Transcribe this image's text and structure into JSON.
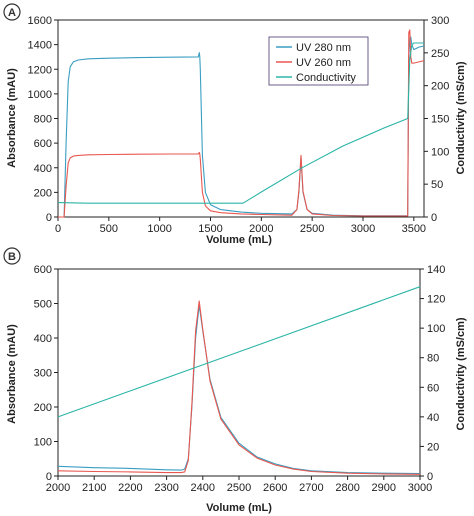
{
  "colors": {
    "uv280": "#3a9ec2",
    "uv260": "#e8574f",
    "conductivity": "#2bb5a6",
    "panel_badge_bg": "#ffffff",
    "frame": "#222222"
  },
  "panels": [
    {
      "id": "A",
      "badge": "A",
      "xlabel": "Volume (mL)",
      "ylabel_left": "Absorbance (mAU)",
      "ylabel_right": "Conductivity (mS/cm)",
      "legend": [
        "UV 280 nm",
        "UV 260 nm",
        "Conductivity"
      ]
    },
    {
      "id": "B",
      "badge": "B",
      "xlabel": "Volume (mL)",
      "ylabel_left": "Absorbance (mAU)",
      "ylabel_right": "Conductivity (mS/cm)"
    }
  ],
  "chart_data": [
    {
      "type": "line",
      "panel": "A",
      "xlabel": "Volume (mL)",
      "ylabel": "Absorbance (mAU)",
      "y2label": "Conductivity (mS/cm)",
      "xlim": [
        0,
        3600
      ],
      "ylim": [
        0,
        1600
      ],
      "y2lim": [
        0,
        300
      ],
      "xticks": [
        0,
        500,
        1000,
        1500,
        2000,
        2500,
        3000,
        3500
      ],
      "yticks": [
        0,
        200,
        400,
        600,
        800,
        1000,
        1200,
        1400,
        1600
      ],
      "y2ticks": [
        0,
        50,
        100,
        150,
        200,
        250,
        300
      ],
      "legend_position": "top-right",
      "series": [
        {
          "name": "UV 280 nm",
          "axis": "left",
          "color": "#3a9ec2",
          "x": [
            0,
            60,
            80,
            100,
            120,
            150,
            200,
            300,
            500,
            800,
            1100,
            1380,
            1390,
            1395,
            1400,
            1420,
            1450,
            1500,
            1600,
            1800,
            2000,
            2300,
            2350,
            2370,
            2390,
            2410,
            2450,
            2500,
            2700,
            3000,
            3300,
            3440,
            3450,
            3460,
            3470,
            3480,
            3500,
            3550,
            3600
          ],
          "y": [
            0,
            0,
            600,
            1100,
            1220,
            1260,
            1275,
            1285,
            1290,
            1295,
            1298,
            1300,
            1335,
            1300,
            1200,
            500,
            200,
            100,
            60,
            40,
            30,
            25,
            60,
            200,
            480,
            200,
            60,
            30,
            15,
            10,
            10,
            10,
            1300,
            1450,
            1460,
            1400,
            1360,
            1380,
            1390
          ]
        },
        {
          "name": "UV 260 nm",
          "axis": "left",
          "color": "#e8574f",
          "x": [
            0,
            60,
            80,
            100,
            120,
            150,
            200,
            300,
            500,
            800,
            1100,
            1380,
            1390,
            1395,
            1400,
            1420,
            1450,
            1500,
            1600,
            1800,
            2000,
            2300,
            2350,
            2370,
            2390,
            2410,
            2450,
            2500,
            2700,
            3000,
            3300,
            3440,
            3450,
            3460,
            3470,
            3480,
            3500,
            3550,
            3600
          ],
          "y": [
            0,
            0,
            250,
            440,
            480,
            495,
            500,
            505,
            508,
            510,
            512,
            512,
            525,
            510,
            470,
            200,
            90,
            50,
            35,
            25,
            20,
            15,
            60,
            220,
            500,
            210,
            60,
            25,
            12,
            8,
            8,
            8,
            1500,
            1520,
            1300,
            1250,
            1250,
            1260,
            1270
          ]
        },
        {
          "name": "Conductivity",
          "axis": "right",
          "color": "#2bb5a6",
          "x": [
            0,
            300,
            800,
            1400,
            1820,
            2000,
            2400,
            2800,
            3200,
            3440,
            3460,
            3480,
            3500,
            3600
          ],
          "y": [
            22,
            21,
            21,
            21,
            21,
            38,
            75,
            108,
            135,
            150,
            240,
            262,
            265,
            265
          ]
        }
      ]
    },
    {
      "type": "line",
      "panel": "B",
      "xlabel": "Volume (mL)",
      "ylabel": "Absorbance (mAU)",
      "y2label": "Conductivity (mS/cm)",
      "xlim": [
        2000,
        3000
      ],
      "ylim": [
        0,
        600
      ],
      "y2lim": [
        0,
        140
      ],
      "xticks": [
        2000,
        2100,
        2200,
        2300,
        2400,
        2500,
        2600,
        2700,
        2800,
        2900,
        3000
      ],
      "yticks": [
        0,
        100,
        200,
        300,
        400,
        500,
        600
      ],
      "y2ticks": [
        0,
        20,
        40,
        60,
        80,
        100,
        120,
        140
      ],
      "series": [
        {
          "name": "UV 280 nm",
          "axis": "left",
          "color": "#3a9ec2",
          "x": [
            2000,
            2100,
            2200,
            2300,
            2340,
            2350,
            2360,
            2370,
            2380,
            2390,
            2400,
            2420,
            2450,
            2500,
            2550,
            2600,
            2650,
            2700,
            2800,
            2900,
            3000
          ],
          "y": [
            28,
            24,
            22,
            18,
            17,
            20,
            50,
            200,
            400,
            495,
            420,
            280,
            170,
            95,
            55,
            35,
            22,
            15,
            10,
            8,
            7
          ]
        },
        {
          "name": "UV 260 nm",
          "axis": "left",
          "color": "#e8574f",
          "x": [
            2000,
            2100,
            2200,
            2300,
            2340,
            2350,
            2360,
            2370,
            2380,
            2390,
            2400,
            2420,
            2450,
            2500,
            2550,
            2600,
            2650,
            2700,
            2800,
            2900,
            3000
          ],
          "y": [
            15,
            13,
            12,
            10,
            10,
            12,
            45,
            210,
            420,
            507,
            425,
            275,
            165,
            90,
            52,
            32,
            20,
            13,
            8,
            6,
            5
          ]
        },
        {
          "name": "Conductivity",
          "axis": "right",
          "color": "#2bb5a6",
          "x": [
            2000,
            3000
          ],
          "y": [
            40,
            128
          ]
        }
      ]
    }
  ]
}
